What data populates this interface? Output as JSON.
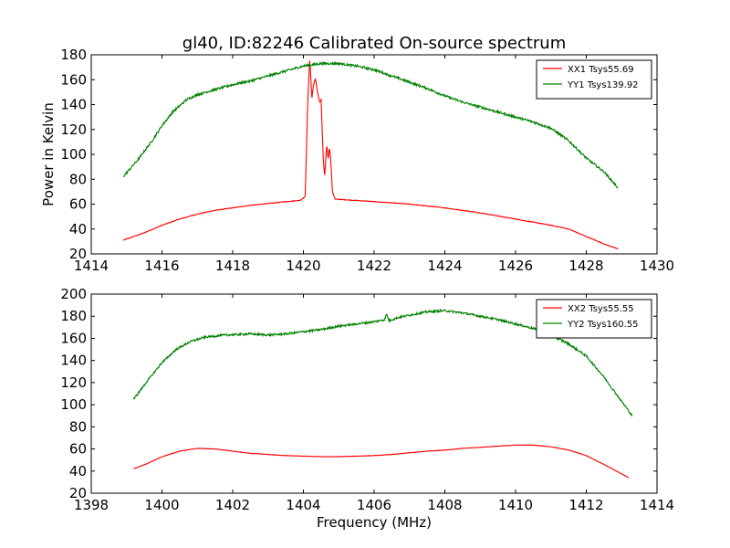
{
  "title": "gl40, ID:82246 Calibrated On-source spectrum",
  "chart_data": [
    {
      "type": "line",
      "title": "gl40, ID:82246 Calibrated On-source spectrum",
      "xlabel": "",
      "ylabel": "Power in Kelvin",
      "xlim": [
        1414,
        1430
      ],
      "ylim": [
        20,
        180
      ],
      "xticks": [
        "1414",
        "1416",
        "1418",
        "1420",
        "1422",
        "1424",
        "1426",
        "1428",
        "1430"
      ],
      "yticks": [
        "20",
        "40",
        "60",
        "80",
        "100",
        "120",
        "140",
        "160",
        "180"
      ],
      "grid": false,
      "legend_position": "top-right",
      "series": [
        {
          "name": "XX1 Tsys55.69",
          "color": "#ff0000",
          "noise": 0.25,
          "points": [
            [
              1414.9,
              31
            ],
            [
              1415.5,
              37
            ],
            [
              1416,
              43
            ],
            [
              1416.5,
              48
            ],
            [
              1417,
              52
            ],
            [
              1417.5,
              55
            ],
            [
              1418,
              57
            ],
            [
              1418.5,
              59
            ],
            [
              1419,
              60.5
            ],
            [
              1419.5,
              62
            ],
            [
              1419.9,
              63
            ],
            [
              1420.05,
              66
            ],
            [
              1420.12,
              140
            ],
            [
              1420.18,
              177
            ],
            [
              1420.24,
              145
            ],
            [
              1420.28,
              155
            ],
            [
              1420.34,
              161
            ],
            [
              1420.4,
              150
            ],
            [
              1420.46,
              142
            ],
            [
              1420.5,
              144
            ],
            [
              1420.56,
              97
            ],
            [
              1420.6,
              82
            ],
            [
              1420.66,
              108
            ],
            [
              1420.7,
              96
            ],
            [
              1420.74,
              106
            ],
            [
              1420.78,
              92
            ],
            [
              1420.82,
              70
            ],
            [
              1420.9,
              64
            ],
            [
              1421.2,
              63.5
            ],
            [
              1422,
              62
            ],
            [
              1423,
              60
            ],
            [
              1424,
              57
            ],
            [
              1425,
              53
            ],
            [
              1426,
              48
            ],
            [
              1427,
              43
            ],
            [
              1427.5,
              40
            ],
            [
              1428,
              34
            ],
            [
              1428.5,
              28
            ],
            [
              1428.9,
              24
            ]
          ]
        },
        {
          "name": "YY1 Tsys139.92",
          "color": "#008000",
          "noise": 0.9,
          "points": [
            [
              1414.9,
              82
            ],
            [
              1415.3,
              95
            ],
            [
              1415.7,
              110
            ],
            [
              1416,
              123
            ],
            [
              1416.3,
              134
            ],
            [
              1416.7,
              144
            ],
            [
              1417,
              148
            ],
            [
              1417.5,
              152
            ],
            [
              1418,
              156
            ],
            [
              1418.5,
              159
            ],
            [
              1419,
              163
            ],
            [
              1419.5,
              167
            ],
            [
              1420,
              171
            ],
            [
              1420.5,
              173
            ],
            [
              1421,
              173
            ],
            [
              1421.5,
              171
            ],
            [
              1422,
              168
            ],
            [
              1422.5,
              163
            ],
            [
              1423,
              158
            ],
            [
              1423.5,
              153
            ],
            [
              1424,
              147
            ],
            [
              1424.5,
              142
            ],
            [
              1425,
              138
            ],
            [
              1425.5,
              134
            ],
            [
              1426,
              130
            ],
            [
              1426.5,
              126
            ],
            [
              1427,
              121
            ],
            [
              1427.5,
              111
            ],
            [
              1428,
              97
            ],
            [
              1428.5,
              86
            ],
            [
              1428.9,
              73
            ]
          ]
        }
      ]
    },
    {
      "type": "line",
      "title": "",
      "xlabel": "Frequency (MHz)",
      "ylabel": "",
      "xlim": [
        1398,
        1414
      ],
      "ylim": [
        20,
        200
      ],
      "xticks": [
        "1398",
        "1400",
        "1402",
        "1404",
        "1406",
        "1408",
        "1410",
        "1412",
        "1414"
      ],
      "yticks": [
        "20",
        "40",
        "60",
        "80",
        "100",
        "120",
        "140",
        "160",
        "180",
        "200"
      ],
      "grid": false,
      "legend_position": "top-right",
      "series": [
        {
          "name": "XX2 Tsys55.55",
          "color": "#ff0000",
          "noise": 0.2,
          "points": [
            [
              1399.2,
              42
            ],
            [
              1399.6,
              47
            ],
            [
              1400,
              53
            ],
            [
              1400.5,
              58
            ],
            [
              1401,
              60.5
            ],
            [
              1401.5,
              60
            ],
            [
              1402,
              58
            ],
            [
              1402.5,
              56
            ],
            [
              1403,
              55
            ],
            [
              1403.5,
              54
            ],
            [
              1404,
              53.5
            ],
            [
              1404.5,
              53
            ],
            [
              1405,
              53
            ],
            [
              1405.5,
              53.5
            ],
            [
              1406,
              54
            ],
            [
              1406.5,
              55
            ],
            [
              1407,
              56.5
            ],
            [
              1407.5,
              58
            ],
            [
              1408,
              59
            ],
            [
              1408.5,
              60.5
            ],
            [
              1409,
              61.5
            ],
            [
              1409.5,
              62.5
            ],
            [
              1410,
              63.5
            ],
            [
              1410.5,
              63.5
            ],
            [
              1411,
              62
            ],
            [
              1411.5,
              59
            ],
            [
              1412,
              54
            ],
            [
              1412.5,
              46
            ],
            [
              1413.2,
              34
            ]
          ]
        },
        {
          "name": "YY2 Tsys160.55",
          "color": "#008000",
          "noise": 0.9,
          "points": [
            [
              1399.2,
              105
            ],
            [
              1399.6,
              122
            ],
            [
              1400,
              138
            ],
            [
              1400.4,
              150
            ],
            [
              1400.8,
              157
            ],
            [
              1401.2,
              161
            ],
            [
              1401.8,
              163
            ],
            [
              1402.5,
              164
            ],
            [
              1403,
              163
            ],
            [
              1403.5,
              164
            ],
            [
              1404,
              166
            ],
            [
              1404.5,
              168
            ],
            [
              1405,
              171
            ],
            [
              1405.5,
              173
            ],
            [
              1406,
              175
            ],
            [
              1406.3,
              177
            ],
            [
              1406.35,
              182
            ],
            [
              1406.42,
              176
            ],
            [
              1406.7,
              179
            ],
            [
              1407,
              181
            ],
            [
              1407.5,
              184
            ],
            [
              1408,
              185
            ],
            [
              1408.5,
              183
            ],
            [
              1409,
              180
            ],
            [
              1409.5,
              177
            ],
            [
              1410,
              173
            ],
            [
              1410.5,
              169
            ],
            [
              1411,
              163
            ],
            [
              1411.5,
              155
            ],
            [
              1412,
              144
            ],
            [
              1412.5,
              125
            ],
            [
              1413,
              103
            ],
            [
              1413.3,
              90
            ]
          ]
        }
      ]
    }
  ]
}
